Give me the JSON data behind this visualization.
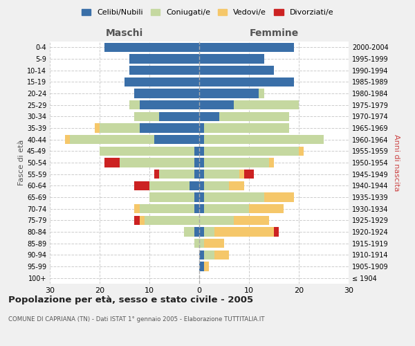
{
  "age_groups": [
    "100+",
    "95-99",
    "90-94",
    "85-89",
    "80-84",
    "75-79",
    "70-74",
    "65-69",
    "60-64",
    "55-59",
    "50-54",
    "45-49",
    "40-44",
    "35-39",
    "30-34",
    "25-29",
    "20-24",
    "15-19",
    "10-14",
    "5-9",
    "0-4"
  ],
  "birth_years": [
    "≤ 1904",
    "1905-1909",
    "1910-1914",
    "1915-1919",
    "1920-1924",
    "1925-1929",
    "1930-1934",
    "1935-1939",
    "1940-1944",
    "1945-1949",
    "1950-1954",
    "1955-1959",
    "1960-1964",
    "1965-1969",
    "1970-1974",
    "1975-1979",
    "1980-1984",
    "1985-1989",
    "1990-1994",
    "1995-1999",
    "2000-2004"
  ],
  "colors": {
    "celibi": "#3a6fa8",
    "coniugati": "#c5d8a0",
    "vedovi": "#f5c76a",
    "divorziati": "#cc2222"
  },
  "maschi": {
    "celibi": [
      0,
      0,
      0,
      0,
      1,
      0,
      1,
      1,
      2,
      1,
      1,
      1,
      9,
      12,
      8,
      12,
      13,
      15,
      14,
      14,
      19
    ],
    "coniugati": [
      0,
      0,
      0,
      1,
      2,
      11,
      11,
      9,
      8,
      7,
      15,
      19,
      17,
      8,
      5,
      2,
      0,
      0,
      0,
      0,
      0
    ],
    "vedovi": [
      0,
      0,
      0,
      0,
      0,
      1,
      1,
      0,
      0,
      0,
      0,
      0,
      1,
      1,
      0,
      0,
      0,
      0,
      0,
      0,
      0
    ],
    "divorziati": [
      0,
      0,
      0,
      0,
      0,
      1,
      0,
      0,
      3,
      1,
      3,
      0,
      0,
      0,
      0,
      0,
      0,
      0,
      0,
      0,
      0
    ]
  },
  "femmine": {
    "celibi": [
      0,
      1,
      1,
      0,
      1,
      0,
      1,
      1,
      1,
      1,
      1,
      1,
      1,
      1,
      4,
      7,
      12,
      19,
      15,
      13,
      19
    ],
    "coniugati": [
      0,
      0,
      2,
      1,
      2,
      7,
      9,
      12,
      5,
      7,
      13,
      19,
      24,
      17,
      14,
      13,
      1,
      0,
      0,
      0,
      0
    ],
    "vedovi": [
      0,
      1,
      3,
      4,
      12,
      7,
      7,
      6,
      3,
      1,
      1,
      1,
      0,
      0,
      0,
      0,
      0,
      0,
      0,
      0,
      0
    ],
    "divorziati": [
      0,
      0,
      0,
      0,
      1,
      0,
      0,
      0,
      0,
      2,
      0,
      0,
      0,
      0,
      0,
      0,
      0,
      0,
      0,
      0,
      0
    ]
  },
  "xlim": 30,
  "title": "Popolazione per età, sesso e stato civile - 2005",
  "subtitle": "COMUNE DI CAPRIANA (TN) - Dati ISTAT 1° gennaio 2005 - Elaborazione TUTTITALIA.IT",
  "ylabel_left": "Fasce di età",
  "ylabel_right": "Anni di nascita",
  "label_maschi": "Maschi",
  "label_femmine": "Femmine",
  "legend_labels": [
    "Celibi/Nubili",
    "Coniugati/e",
    "Vedovi/e",
    "Divorziati/e"
  ],
  "bg_color": "#f0f0f0",
  "plot_bg_color": "#ffffff"
}
